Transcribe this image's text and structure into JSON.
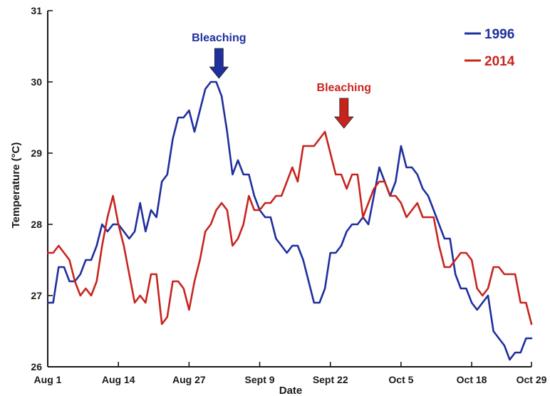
{
  "chart_data": {
    "type": "line",
    "title": "",
    "xlabel": "Date",
    "ylabel": "Temperature (°C)",
    "x_ticks": [
      "Aug 1",
      "Aug 14",
      "Aug 27",
      "Sept 9",
      "Sept 22",
      "Oct 5",
      "Oct 18",
      "Oct 29"
    ],
    "x_tick_days": [
      0,
      13,
      26,
      39,
      52,
      65,
      78,
      89
    ],
    "xlim": [
      0,
      89
    ],
    "ylim": [
      26,
      31
    ],
    "y_ticks": [
      26,
      27,
      28,
      29,
      30,
      31
    ],
    "grid": false,
    "legend": "top-right",
    "series": [
      {
        "name": "1996",
        "color": "#1f2f9e",
        "x": [
          0,
          1,
          2,
          3,
          4,
          5,
          6,
          7,
          8,
          9,
          10,
          11,
          12,
          13,
          14,
          15,
          16,
          17,
          18,
          19,
          20,
          21,
          22,
          23,
          24,
          25,
          26,
          27,
          28,
          29,
          30,
          31,
          32,
          33,
          34,
          35,
          36,
          37,
          38,
          39,
          40,
          41,
          42,
          43,
          44,
          45,
          46,
          47,
          48,
          49,
          50,
          51,
          52,
          53,
          54,
          55,
          56,
          57,
          58,
          59,
          60,
          61,
          62,
          63,
          64,
          65,
          66,
          67,
          68,
          69,
          70,
          71,
          72,
          73,
          74,
          75,
          76,
          77,
          78,
          79,
          80,
          81,
          82,
          83,
          84,
          85,
          86,
          87,
          88,
          89
        ],
        "values": [
          26.9,
          26.9,
          27.4,
          27.4,
          27.2,
          27.2,
          27.3,
          27.5,
          27.5,
          27.7,
          28.0,
          27.9,
          28.0,
          28.0,
          27.9,
          27.8,
          27.9,
          28.3,
          27.9,
          28.2,
          28.1,
          28.6,
          28.7,
          29.2,
          29.5,
          29.5,
          29.6,
          29.3,
          29.6,
          29.9,
          30.0,
          30.0,
          29.8,
          29.3,
          28.7,
          28.9,
          28.7,
          28.7,
          28.4,
          28.2,
          28.1,
          28.1,
          27.8,
          27.7,
          27.6,
          27.7,
          27.7,
          27.5,
          27.2,
          26.9,
          26.9,
          27.1,
          27.6,
          27.6,
          27.7,
          27.9,
          28.0,
          28.0,
          28.1,
          28.0,
          28.4,
          28.8,
          28.6,
          28.4,
          28.6,
          29.1,
          28.8,
          28.8,
          28.7,
          28.5,
          28.4,
          28.2,
          28.0,
          27.8,
          27.8,
          27.3,
          27.1,
          27.1,
          26.9,
          26.8,
          26.9,
          27.0,
          26.5,
          26.4,
          26.3,
          26.1,
          26.2,
          26.2,
          26.4,
          26.4
        ]
      },
      {
        "name": "2014",
        "color": "#c8241e",
        "x": [
          0,
          1,
          2,
          3,
          4,
          5,
          6,
          7,
          8,
          9,
          10,
          11,
          12,
          13,
          14,
          15,
          16,
          17,
          18,
          19,
          20,
          21,
          22,
          23,
          24,
          25,
          26,
          27,
          28,
          29,
          30,
          31,
          32,
          33,
          34,
          35,
          36,
          37,
          38,
          39,
          40,
          41,
          42,
          43,
          44,
          45,
          46,
          47,
          48,
          49,
          50,
          51,
          52,
          53,
          54,
          55,
          56,
          57,
          58,
          59,
          60,
          61,
          62,
          63,
          64,
          65,
          66,
          67,
          68,
          69,
          70,
          71,
          72,
          73,
          74,
          75,
          76,
          77,
          78,
          79,
          80,
          81,
          82,
          83,
          84,
          85,
          86,
          87,
          88,
          89
        ],
        "values": [
          27.6,
          27.6,
          27.7,
          27.6,
          27.5,
          27.2,
          27.0,
          27.1,
          27.0,
          27.2,
          27.7,
          28.1,
          28.4,
          28.0,
          27.7,
          27.3,
          26.9,
          27.0,
          26.9,
          27.3,
          27.3,
          26.6,
          26.7,
          27.2,
          27.2,
          27.1,
          26.8,
          27.2,
          27.5,
          27.9,
          28.0,
          28.2,
          28.3,
          28.2,
          27.7,
          27.8,
          28.0,
          28.4,
          28.2,
          28.2,
          28.3,
          28.3,
          28.4,
          28.4,
          28.6,
          28.8,
          28.6,
          29.1,
          29.1,
          29.1,
          29.2,
          29.3,
          29.0,
          28.7,
          28.7,
          28.5,
          28.7,
          28.7,
          28.1,
          28.3,
          28.5,
          28.6,
          28.6,
          28.4,
          28.4,
          28.3,
          28.1,
          28.2,
          28.3,
          28.1,
          28.1,
          28.1,
          27.7,
          27.4,
          27.4,
          27.5,
          27.6,
          27.6,
          27.5,
          27.1,
          27.0,
          27.1,
          27.4,
          27.4,
          27.3,
          27.3,
          27.3,
          26.9,
          26.9,
          26.6
        ]
      }
    ],
    "annotations": [
      {
        "text": "Bleaching",
        "color": "#1f2f9e",
        "x": 31.5,
        "y": 30.05
      },
      {
        "text": "Bleaching",
        "color": "#c8241e",
        "x": 54.5,
        "y": 29.35
      }
    ]
  }
}
